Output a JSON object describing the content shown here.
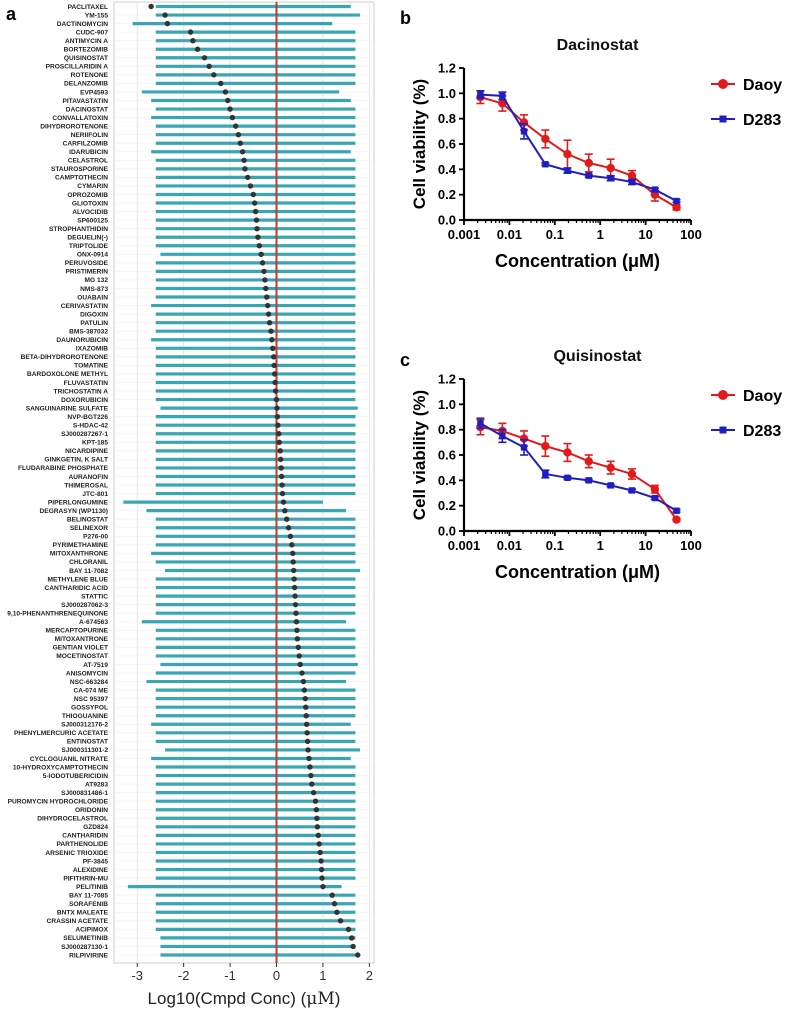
{
  "panels": {
    "a": {
      "label": "a",
      "xlabel": "Log10(Cmpd Conc) (",
      "xlabel_unit": "μM",
      "xlabel_close": ")"
    },
    "b": {
      "label": "b"
    },
    "c": {
      "label": "c"
    }
  },
  "colors": {
    "bar": "#3aa6b3",
    "dot": "#333333",
    "refline": "#c0392b",
    "daoy": "#e31a1c",
    "d283": "#1f1fbf",
    "grid": "#e6e6e6",
    "panel_bg": "#ffffff"
  },
  "chart_data": [
    {
      "id": "a",
      "type": "dot-range",
      "title": "",
      "xlabel": "Log10(Cmpd Conc) (μM)",
      "ylabel": "",
      "xlim": [
        -3.5,
        2.1
      ],
      "xticks": [
        -3,
        -2,
        -1,
        0,
        1,
        2
      ],
      "reference_line_x": 0,
      "grid": true,
      "compounds": [
        "PACLITAXEL",
        "YM-155",
        "DACTINOMYCIN",
        "CUDC-907",
        "ANTIMYCIN A",
        "BORTEZOMIB",
        "QUISINOSTAT",
        "PROSCILLARIDIN A",
        "ROTENONE",
        "DELANZOMIB",
        "EVP4593",
        "PITAVASTATIN",
        "DACINOSTAT",
        "CONVALLATOXIN",
        "DIHYDROROTENONE",
        "NERIIFOLIN",
        "CARFILZOMIB",
        "IDARUBICIN",
        "CELASTROL",
        "STAUROSPORINE",
        "CAMPTOTHECIN",
        "CYMARIN",
        "OPROZOMIB",
        "GLIOTOXIN",
        "ALVOCIDIB",
        "SP600125",
        "STROPHANTHIDIN",
        "DEGUELIN(-)",
        "TRIPTOLIDE",
        "ONX-0914",
        "PERUVOSIDE",
        "PRISTIMERIN",
        "MG 132",
        "NMS-873",
        "OUABAIN",
        "CERIVASTATIN",
        "DIGOXIN",
        "PATULIN",
        "BMS-387032",
        "DAUNORUBICIN",
        "IXAZOMIB",
        "BETA-DIHYDROROTENONE",
        "TOMATINE",
        "BARDOXOLONE METHYL",
        "FLUVASTATIN",
        "TRICHOSTATIN A",
        "DOXORUBICIN",
        "SANGUINARINE SULFATE",
        "NVP-BGT226",
        "S-HDAC-42",
        "SJ000287267-1",
        "KPT-185",
        "NICARDIPINE",
        "GINKGETIN, K SALT",
        "FLUDARABINE PHOSPHATE",
        "AURANOFIN",
        "THIMEROSAL",
        "JTC-801",
        "PIPERLONGUMINE",
        "DEGRASYN (WP1130)",
        "BELINOSTAT",
        "SELINEXOR",
        "P276-00",
        "PYRIMETHAMINE",
        "MITOXANTHRONE",
        "CHLORANIL",
        "BAY 11-7082",
        "METHYLENE BLUE",
        "CANTHARIDIC ACID",
        "STATTIC",
        "SJ000287062-3",
        "9,10-PHENANTHRENEQUINONE",
        "A-674563",
        "MERCAPTOPURINE",
        "MITOXANTRONE",
        "GENTIAN VIOLET",
        "MOCETINOSTAT",
        "AT-7519",
        "ANISOMYCIN",
        "NSC-663284",
        "CA-074 ME",
        "NSC 95397",
        "GOSSYPOL",
        "THIOGUANINE",
        "SJ000312176-2",
        "PHENYLMERCURIC ACETATE",
        "ENTINOSTAT",
        "SJ000311301-2",
        "CYCLOGUANIL NITRATE",
        "10-HYDROXYCAMPTOTHECIN",
        "5-IODOTUBERICIDIN",
        "AT9283",
        "SJ000831486-1",
        "PUROMYCIN HYDROCHLORIDE",
        "ORIDONIN",
        "DIHYDROCELASTROL",
        "GZD824",
        "CANTHARIDIN",
        "PARTHENOLIDE",
        "ARSENIC TRIOXIDE",
        "PF-3845",
        "ALEXIDINE",
        "PIFITHRIN-MU",
        "PELITINIB",
        "BAY 11-7085",
        "SORAFENIB",
        "BNTX MALEATE",
        "CRASSIN ACETATE",
        "ACIPIMOX",
        "SELUMETINIB",
        "SJ000287130-1",
        "RILPIVIRINE"
      ],
      "log10_conc": [
        -2.7,
        -2.4,
        -2.35,
        -1.85,
        -1.8,
        -1.7,
        -1.55,
        -1.45,
        -1.35,
        -1.2,
        -1.1,
        -1.05,
        -1.0,
        -0.95,
        -0.88,
        -0.82,
        -0.78,
        -0.73,
        -0.7,
        -0.68,
        -0.62,
        -0.56,
        -0.5,
        -0.47,
        -0.45,
        -0.43,
        -0.42,
        -0.4,
        -0.37,
        -0.33,
        -0.3,
        -0.27,
        -0.25,
        -0.23,
        -0.21,
        -0.19,
        -0.17,
        -0.15,
        -0.12,
        -0.1,
        -0.08,
        -0.06,
        -0.05,
        -0.04,
        -0.03,
        -0.02,
        0.0,
        0.01,
        0.02,
        0.03,
        0.05,
        0.06,
        0.08,
        0.09,
        0.1,
        0.11,
        0.12,
        0.13,
        0.15,
        0.18,
        0.22,
        0.26,
        0.3,
        0.33,
        0.35,
        0.36,
        0.37,
        0.38,
        0.39,
        0.4,
        0.41,
        0.42,
        0.43,
        0.44,
        0.45,
        0.47,
        0.49,
        0.51,
        0.55,
        0.58,
        0.6,
        0.62,
        0.63,
        0.64,
        0.65,
        0.66,
        0.67,
        0.68,
        0.7,
        0.72,
        0.74,
        0.76,
        0.8,
        0.84,
        0.86,
        0.87,
        0.88,
        0.9,
        0.92,
        0.94,
        0.96,
        0.97,
        0.98,
        1.0,
        1.2,
        1.25,
        1.3,
        1.38,
        1.55,
        1.62,
        1.65,
        1.75
      ],
      "range_low": [
        -2.6,
        -2.6,
        -3.1,
        -2.6,
        -2.6,
        -2.6,
        -2.6,
        -2.6,
        -2.6,
        -2.6,
        -2.9,
        -2.7,
        -2.6,
        -2.7,
        -2.6,
        -2.6,
        -2.6,
        -2.7,
        -2.6,
        -2.6,
        -2.6,
        -2.6,
        -2.6,
        -2.6,
        -2.6,
        -2.6,
        -2.6,
        -2.6,
        -2.6,
        -2.5,
        -2.6,
        -2.6,
        -2.6,
        -2.6,
        -2.6,
        -2.7,
        -2.6,
        -2.6,
        -2.6,
        -2.7,
        -2.6,
        -2.6,
        -2.6,
        -2.6,
        -2.6,
        -2.6,
        -2.6,
        -2.5,
        -2.6,
        -2.6,
        -2.6,
        -2.6,
        -2.6,
        -2.6,
        -2.6,
        -2.6,
        -2.6,
        -2.6,
        -3.3,
        -2.8,
        -2.6,
        -2.6,
        -2.6,
        -2.6,
        -2.7,
        -2.6,
        -2.4,
        -2.6,
        -2.6,
        -2.6,
        -2.6,
        -2.6,
        -2.9,
        -2.6,
        -2.6,
        -2.6,
        -2.6,
        -2.5,
        -2.6,
        -2.8,
        -2.6,
        -2.6,
        -2.6,
        -2.6,
        -2.7,
        -2.6,
        -2.6,
        -2.4,
        -2.7,
        -2.6,
        -2.6,
        -2.6,
        -2.6,
        -2.6,
        -2.6,
        -2.6,
        -2.6,
        -2.6,
        -2.6,
        -2.6,
        -2.6,
        -2.6,
        -2.6,
        -3.2,
        -2.6,
        -2.6,
        -2.6,
        -2.6,
        -2.6,
        -2.5,
        -2.5,
        -2.5
      ],
      "range_high": [
        1.6,
        1.8,
        1.2,
        1.7,
        1.7,
        1.7,
        1.7,
        1.7,
        1.7,
        1.7,
        1.35,
        1.6,
        1.7,
        1.7,
        1.7,
        1.7,
        1.7,
        1.6,
        1.7,
        1.7,
        1.7,
        1.7,
        1.7,
        1.7,
        1.7,
        1.7,
        1.7,
        1.7,
        1.7,
        1.7,
        1.7,
        1.7,
        1.7,
        1.7,
        1.7,
        1.7,
        1.7,
        1.7,
        1.7,
        1.7,
        1.7,
        1.7,
        1.7,
        1.7,
        1.7,
        1.7,
        1.7,
        1.75,
        1.7,
        1.7,
        1.7,
        1.7,
        1.7,
        1.7,
        1.7,
        1.7,
        1.7,
        1.7,
        1.0,
        1.5,
        1.7,
        1.7,
        1.7,
        1.7,
        1.7,
        1.7,
        1.8,
        1.7,
        1.7,
        1.7,
        1.7,
        1.7,
        1.5,
        1.7,
        1.7,
        1.7,
        1.7,
        1.75,
        1.7,
        1.5,
        1.7,
        1.7,
        1.7,
        1.7,
        1.6,
        1.7,
        1.7,
        1.8,
        1.6,
        1.7,
        1.7,
        1.7,
        1.7,
        1.7,
        1.7,
        1.7,
        1.7,
        1.7,
        1.7,
        1.7,
        1.7,
        1.7,
        1.7,
        1.4,
        1.7,
        1.7,
        1.7,
        1.7,
        1.7,
        1.7,
        1.7,
        1.7
      ]
    },
    {
      "id": "b",
      "type": "line",
      "title": "Dacinostat",
      "xlabel": "Concentration (μM)",
      "ylabel": "Cell viability (%)",
      "xscale": "log",
      "xlim": [
        0.001,
        100
      ],
      "ylim": [
        0,
        1.2
      ],
      "xticks": [
        0.001,
        0.01,
        0.1,
        1,
        10,
        100
      ],
      "xtick_labels": [
        "0.001",
        "0.01",
        "0.1",
        "1",
        "10",
        "100"
      ],
      "yticks": [
        0,
        0.2,
        0.4,
        0.6,
        0.8,
        1,
        1.2
      ],
      "ytick_labels": [
        "0.0",
        "0.2",
        "0.4",
        "0.6",
        "0.8",
        "1.0",
        "1.2"
      ],
      "legend_position": "right",
      "series": [
        {
          "name": "Daoy",
          "color": "#e31a1c",
          "marker": "circle",
          "x": [
            0.0023,
            0.007,
            0.021,
            0.062,
            0.19,
            0.56,
            1.7,
            5,
            16,
            48
          ],
          "y": [
            0.97,
            0.92,
            0.77,
            0.64,
            0.52,
            0.45,
            0.41,
            0.35,
            0.2,
            0.1
          ],
          "err": [
            0.05,
            0.06,
            0.06,
            0.07,
            0.11,
            0.07,
            0.07,
            0.04,
            0.05,
            0.02
          ]
        },
        {
          "name": "D283",
          "color": "#1f1fbf",
          "marker": "square",
          "x": [
            0.0023,
            0.007,
            0.021,
            0.062,
            0.19,
            0.56,
            1.7,
            5,
            16,
            48
          ],
          "y": [
            0.99,
            0.98,
            0.7,
            0.44,
            0.39,
            0.35,
            0.33,
            0.3,
            0.24,
            0.15
          ],
          "err": [
            0.03,
            0.03,
            0.06,
            0.01,
            0.02,
            0.01,
            0.02,
            0.02,
            0.01,
            0.01
          ]
        }
      ]
    },
    {
      "id": "c",
      "type": "line",
      "title": "Quisinostat",
      "xlabel": "Concentration (μM)",
      "ylabel": "Cell viability (%)",
      "xscale": "log",
      "xlim": [
        0.001,
        100
      ],
      "ylim": [
        0,
        1.2
      ],
      "xticks": [
        0.001,
        0.01,
        0.1,
        1,
        10,
        100
      ],
      "xtick_labels": [
        "0.001",
        "0.01",
        "0.1",
        "1",
        "10",
        "100"
      ],
      "yticks": [
        0,
        0.2,
        0.4,
        0.6,
        0.8,
        1,
        1.2
      ],
      "ytick_labels": [
        "0.0",
        "0.2",
        "0.4",
        "0.6",
        "0.8",
        "1.0",
        "1.2"
      ],
      "legend_position": "right",
      "series": [
        {
          "name": "Daoy",
          "color": "#e31a1c",
          "marker": "circle",
          "x": [
            0.0023,
            0.007,
            0.021,
            0.062,
            0.19,
            0.56,
            1.7,
            5,
            16,
            48
          ],
          "y": [
            0.82,
            0.79,
            0.73,
            0.67,
            0.62,
            0.55,
            0.5,
            0.45,
            0.33,
            0.09
          ],
          "err": [
            0.06,
            0.06,
            0.06,
            0.08,
            0.07,
            0.05,
            0.05,
            0.04,
            0.03,
            0.01
          ]
        },
        {
          "name": "D283",
          "color": "#1f1fbf",
          "marker": "square",
          "x": [
            0.0023,
            0.007,
            0.021,
            0.062,
            0.19,
            0.56,
            1.7,
            5,
            16,
            48
          ],
          "y": [
            0.85,
            0.75,
            0.66,
            0.45,
            0.42,
            0.4,
            0.36,
            0.32,
            0.26,
            0.16
          ],
          "err": [
            0.04,
            0.05,
            0.06,
            0.03,
            0.01,
            0.01,
            0.01,
            0.01,
            0.01,
            0.01
          ]
        }
      ]
    }
  ]
}
